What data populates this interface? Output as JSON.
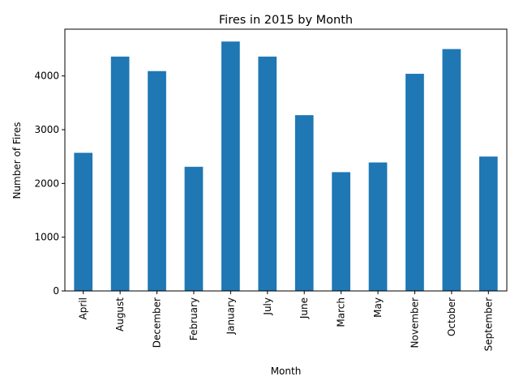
{
  "chart_data": {
    "type": "bar",
    "title": "Fires in 2015 by Month",
    "xlabel": "Month",
    "ylabel": "Number of Fires",
    "categories": [
      "April",
      "August",
      "December",
      "February",
      "January",
      "July",
      "June",
      "March",
      "May",
      "November",
      "October",
      "September"
    ],
    "values": [
      2570,
      4360,
      4090,
      2310,
      4640,
      4360,
      3270,
      2210,
      2390,
      4040,
      4500,
      2500
    ],
    "ylim": [
      0,
      4870
    ],
    "yticks": [
      0,
      1000,
      2000,
      3000,
      4000
    ],
    "grid": false,
    "bar_color": "#1f77b4"
  }
}
